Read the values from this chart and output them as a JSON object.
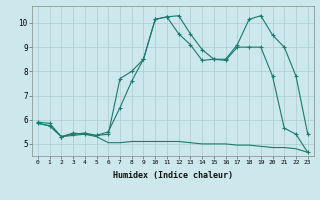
{
  "xlabel": "Humidex (Indice chaleur)",
  "bg_color": "#cce8ec",
  "line_color": "#1a7a6e",
  "grid_color": "#aacccc",
  "xlim": [
    -0.5,
    23.5
  ],
  "ylim": [
    4.5,
    10.7
  ],
  "yticks": [
    5,
    6,
    7,
    8,
    9,
    10
  ],
  "xticks": [
    0,
    1,
    2,
    3,
    4,
    5,
    6,
    7,
    8,
    9,
    10,
    11,
    12,
    13,
    14,
    15,
    16,
    17,
    18,
    19,
    20,
    21,
    22,
    23
  ],
  "series1_x": [
    0,
    1,
    2,
    3,
    4,
    5,
    6,
    7,
    8,
    9,
    10,
    11,
    12,
    13,
    14,
    15,
    16,
    17,
    18,
    19,
    20,
    21,
    22,
    23
  ],
  "series1_y": [
    5.85,
    5.75,
    5.3,
    5.35,
    5.4,
    5.3,
    5.05,
    5.05,
    5.1,
    5.1,
    5.1,
    5.1,
    5.1,
    5.05,
    5.0,
    5.0,
    5.0,
    4.95,
    4.95,
    4.9,
    4.85,
    4.85,
    4.8,
    4.65
  ],
  "series2_x": [
    0,
    1,
    2,
    3,
    4,
    5,
    6,
    7,
    8,
    9,
    10,
    11,
    12,
    13,
    14,
    15,
    16,
    17,
    18,
    19,
    20,
    21,
    22,
    23
  ],
  "series2_y": [
    5.85,
    5.75,
    5.3,
    5.45,
    5.4,
    5.35,
    5.5,
    6.5,
    7.6,
    8.5,
    10.15,
    10.25,
    10.3,
    9.55,
    8.9,
    8.5,
    8.5,
    9.1,
    10.15,
    10.3,
    9.5,
    9.0,
    7.8,
    5.4
  ],
  "series3_x": [
    0,
    1,
    2,
    3,
    4,
    5,
    6,
    7,
    8,
    9,
    10,
    11,
    12,
    13,
    14,
    15,
    16,
    17,
    18,
    19,
    20,
    21,
    22,
    23
  ],
  "series3_y": [
    5.9,
    5.85,
    5.3,
    5.4,
    5.45,
    5.35,
    5.4,
    7.7,
    8.0,
    8.5,
    10.15,
    10.25,
    9.55,
    9.1,
    8.45,
    8.5,
    8.45,
    9.0,
    9.0,
    9.0,
    7.8,
    5.65,
    5.4,
    4.65
  ]
}
